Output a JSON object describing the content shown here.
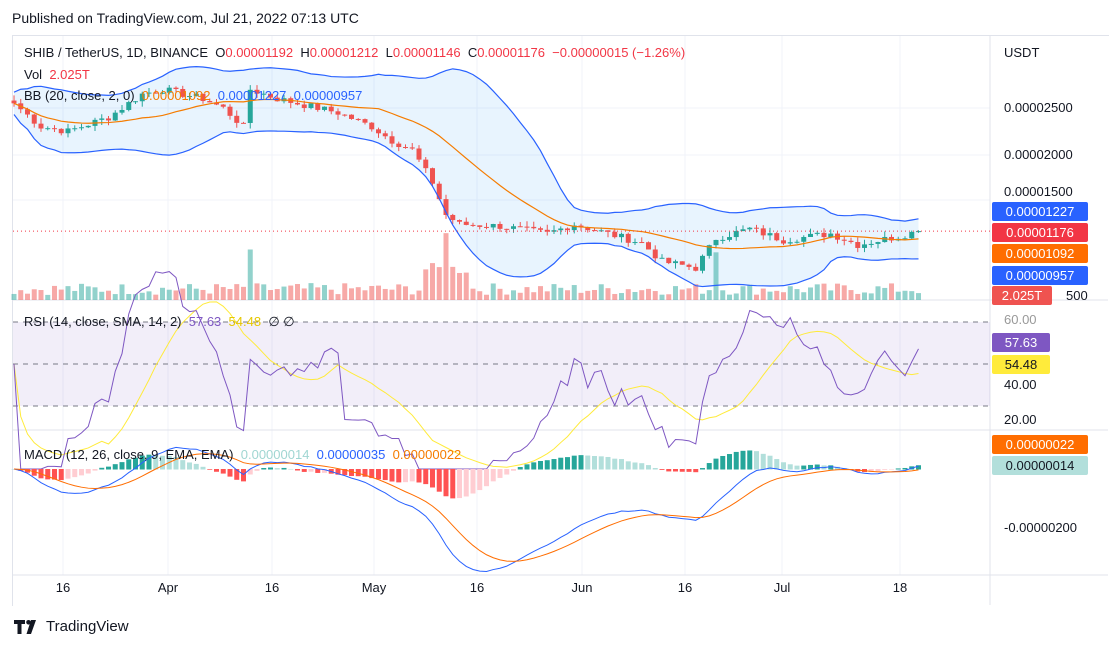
{
  "published": "Published on TradingView.com, Jul 21, 2022 07:13 UTC",
  "symbol": "SHIB / TetherUS, 1D, BINANCE",
  "ohlc": {
    "o_label": "O",
    "o": "0.00001192",
    "h_label": "H",
    "h": "0.00001212",
    "l_label": "L",
    "l": "0.00001146",
    "c_label": "C",
    "c": "0.00001176",
    "change": "−0.00000015 (−1.26%)"
  },
  "vol": {
    "label": "Vol",
    "value": "2.025T"
  },
  "bb": {
    "label": "BB (20, close, 2, 0)",
    "basis": "0.00001092",
    "upper": "0.00001227",
    "lower": "0.00000957"
  },
  "rsi": {
    "label": "RSI (14, close, SMA, 14, 2)",
    "value": "57.63",
    "sma": "54.48",
    "extra": "∅ ∅"
  },
  "macd": {
    "label": "MACD (12, 26, close, 9, EMA, EMA)",
    "hist": "0.00000014",
    "macd": "0.00000035",
    "signal": "0.00000022"
  },
  "currency": "USDT",
  "price_axis": [
    "0.00002500",
    "0.00002000",
    "0.00001500"
  ],
  "price_tags": {
    "upper": "0.00001227",
    "last": "0.00001176",
    "basis": "0.00001092",
    "lower": "0.00000957",
    "vol": "2.025T",
    "vol_axis": "500"
  },
  "rsi_axis": [
    "60.00",
    "40.00",
    "20.00"
  ],
  "macd_axis": [
    "-0.00000200"
  ],
  "x_axis": [
    "16",
    "Apr",
    "16",
    "May",
    "16",
    "Jun",
    "16",
    "Jul",
    "18"
  ],
  "logo": "TradingView",
  "colors": {
    "up": "#26a69a",
    "down": "#ef5350",
    "bb": "#2962ff",
    "basis": "#f57c00",
    "rsi": "#7e57c2",
    "rsi_sma": "#ffeb3b"
  },
  "price_keyframes": [
    [
      0,
      25.5
    ],
    [
      4,
      23
    ],
    [
      8,
      22.5
    ],
    [
      14,
      24
    ],
    [
      19,
      26.5
    ],
    [
      22,
      27
    ],
    [
      28,
      26
    ],
    [
      31,
      25
    ],
    [
      34,
      23
    ],
    [
      35,
      27
    ],
    [
      39,
      26
    ],
    [
      48,
      24.5
    ],
    [
      53,
      23
    ],
    [
      56,
      21.5
    ],
    [
      59,
      20.5
    ],
    [
      62,
      17
    ],
    [
      64,
      13.5
    ],
    [
      66,
      12.5
    ],
    [
      72,
      12.3
    ],
    [
      79,
      11.5
    ],
    [
      83,
      12.5
    ],
    [
      88,
      11.5
    ],
    [
      93,
      10.5
    ],
    [
      96,
      8.5
    ],
    [
      101,
      7.8
    ],
    [
      104,
      11
    ],
    [
      109,
      12
    ],
    [
      114,
      10.8
    ],
    [
      121,
      11.5
    ],
    [
      125,
      10.3
    ],
    [
      131,
      11.2
    ],
    [
      134,
      11.76
    ]
  ]
}
